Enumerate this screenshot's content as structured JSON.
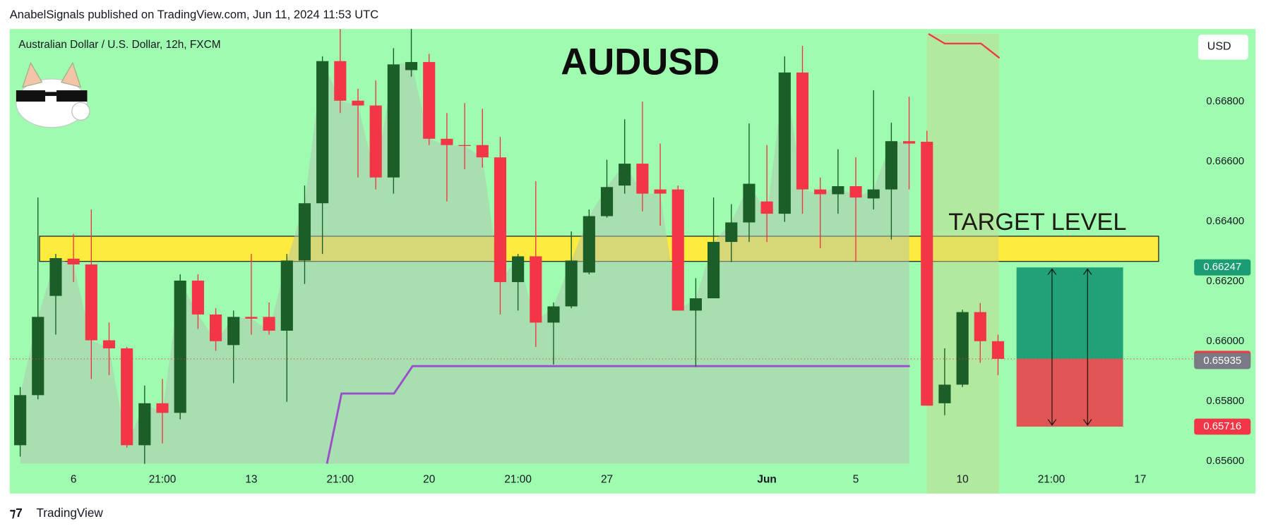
{
  "header": {
    "text": "AnabelSignals published on TradingView.com, Jun 11, 2024 11:53 UTC"
  },
  "footer": {
    "brand": "TradingView"
  },
  "chart_data": {
    "type": "candlestick",
    "title": "AUDUSD",
    "subtitle": "Australian Dollar / U.S. Dollar, 12h, FXCM",
    "annotation": "TARGET LEVEL",
    "currency": "USD",
    "up_color": "#1b5e27",
    "down_color": "#f23645",
    "grid": false,
    "categories": [
      null,
      null,
      null,
      "6",
      null,
      null,
      null,
      null,
      "21:00",
      null,
      null,
      null,
      null,
      "13",
      null,
      null,
      null,
      null,
      "21:00",
      null,
      null,
      null,
      null,
      "20",
      null,
      null,
      null,
      null,
      "21:00",
      null,
      null,
      null,
      null,
      "27",
      null,
      null,
      null,
      null,
      null,
      null,
      null,
      null,
      "Jun",
      null,
      null,
      null,
      null,
      "5",
      null,
      null,
      null,
      null,
      null,
      "10",
      null,
      null,
      null,
      null,
      "21:00",
      null,
      null,
      null,
      null,
      "17"
    ],
    "open": [
      0.65654,
      0.65821,
      0.66152,
      0.66276,
      0.66257,
      0.66004,
      0.65977,
      0.65654,
      0.65794,
      0.65762,
      0.66203,
      0.6609,
      0.65988,
      0.66082,
      0.66082,
      0.66036,
      0.6627,
      0.66461,
      0.66935,
      0.66803,
      0.66787,
      0.66547,
      0.66905,
      0.66932,
      0.66676,
      0.66655,
      0.66655,
      0.66614,
      0.66198,
      0.66284,
      0.66063,
      0.66117,
      0.6623,
      0.66418,
      0.6652,
      0.66593,
      0.66507,
      0.66507,
      0.66103,
      0.66144,
      0.66332,
      0.66397,
      0.66467,
      0.66426,
      0.66897,
      0.66507,
      0.66491,
      0.66518,
      0.66477,
      0.66507,
      0.66668,
      0.66666,
      0.65794,
      0.65856,
      0.66098,
      0.66001,
      null,
      null,
      null,
      null,
      null,
      null,
      null,
      null
    ],
    "high": [
      0.65848,
      0.6648,
      0.66292,
      0.66359,
      0.6644,
      0.66063,
      0.65982,
      0.65853,
      0.65875,
      0.66224,
      0.66224,
      0.66111,
      0.66103,
      0.66292,
      0.6613,
      0.66292,
      0.6652,
      0.66951,
      0.67042,
      0.66843,
      0.6687,
      0.66978,
      0.67042,
      0.66959,
      0.66762,
      0.66795,
      0.66776,
      0.66682,
      0.66292,
      0.66534,
      0.6613,
      0.66367,
      0.6644,
      0.66606,
      0.66741,
      0.668,
      0.6666,
      0.6652,
      0.66211,
      0.6648,
      0.66458,
      0.66727,
      0.66655,
      0.66951,
      0.66986,
      0.66547,
      0.66641,
      0.66614,
      0.66838,
      0.6673,
      0.66816,
      0.66703,
      0.65977,
      0.66106,
      0.66128,
      0.66023,
      null,
      null,
      null,
      null,
      null,
      null,
      null,
      null
    ],
    "low": [
      0.65616,
      0.65807,
      0.66023,
      0.66198,
      0.65875,
      0.65888,
      0.65646,
      0.65592,
      0.6566,
      0.6574,
      0.66042,
      0.65969,
      0.65861,
      0.66023,
      0.66023,
      0.65799,
      0.66192,
      0.66292,
      0.66762,
      0.66547,
      0.66507,
      0.66493,
      0.66883,
      0.66655,
      0.66467,
      0.66574,
      0.6658,
      0.6609,
      0.66103,
      0.65982,
      0.65923,
      0.66111,
      0.66224,
      0.66413,
      0.66493,
      0.66434,
      0.66386,
      0.66103,
      0.65915,
      0.66144,
      0.66265,
      0.66332,
      0.66332,
      0.66399,
      0.66426,
      0.66311,
      0.66426,
      0.66265,
      0.6644,
      0.6634,
      0.66507,
      0.65786,
      0.65754,
      0.65848,
      0.65929,
      0.65888,
      null,
      null,
      null,
      null,
      null,
      null,
      null,
      null
    ],
    "close": [
      0.65821,
      0.66082,
      0.66278,
      0.66257,
      0.66004,
      0.65977,
      0.65654,
      0.65794,
      0.65762,
      0.66203,
      0.6609,
      0.66001,
      0.66082,
      0.66076,
      0.66036,
      0.6627,
      0.66461,
      0.66935,
      0.66803,
      0.66787,
      0.66547,
      0.66924,
      0.66932,
      0.66676,
      0.66655,
      0.66652,
      0.66614,
      0.66198,
      0.66284,
      0.66063,
      0.66117,
      0.6627,
      0.66418,
      0.66515,
      0.66593,
      0.66493,
      0.66493,
      0.66103,
      0.66144,
      0.66332,
      0.66397,
      0.66526,
      0.66426,
      0.66897,
      0.66507,
      0.66491,
      0.66518,
      0.6648,
      0.66507,
      0.66668,
      0.6666,
      0.65786,
      0.65856,
      0.66098,
      0.66001,
      0.65942,
      null,
      null,
      null,
      null,
      null,
      null,
      null,
      null
    ],
    "zone": [
      0.66267,
      0.66351
    ],
    "ylim": [
      0.65493,
      0.67042
    ],
    "yticks": [
      {
        "value": 0.656,
        "label": "0.65600"
      },
      {
        "value": 0.658,
        "label": "0.65800"
      },
      {
        "value": 0.66,
        "label": "0.66000"
      },
      {
        "value": 0.662,
        "label": "0.66200"
      },
      {
        "value": 0.664,
        "label": "0.66400"
      },
      {
        "value": 0.666,
        "label": "0.66600"
      },
      {
        "value": 0.668,
        "label": "0.66800"
      }
    ],
    "price_tags": [
      {
        "value": 0.66247,
        "color": "#1a9c74"
      },
      {
        "value": 0.65942,
        "color": "#f23645"
      },
      {
        "value": 0.65935,
        "color": "#787b86"
      },
      {
        "value": 0.65716,
        "color": "#f23645"
      }
    ]
  }
}
